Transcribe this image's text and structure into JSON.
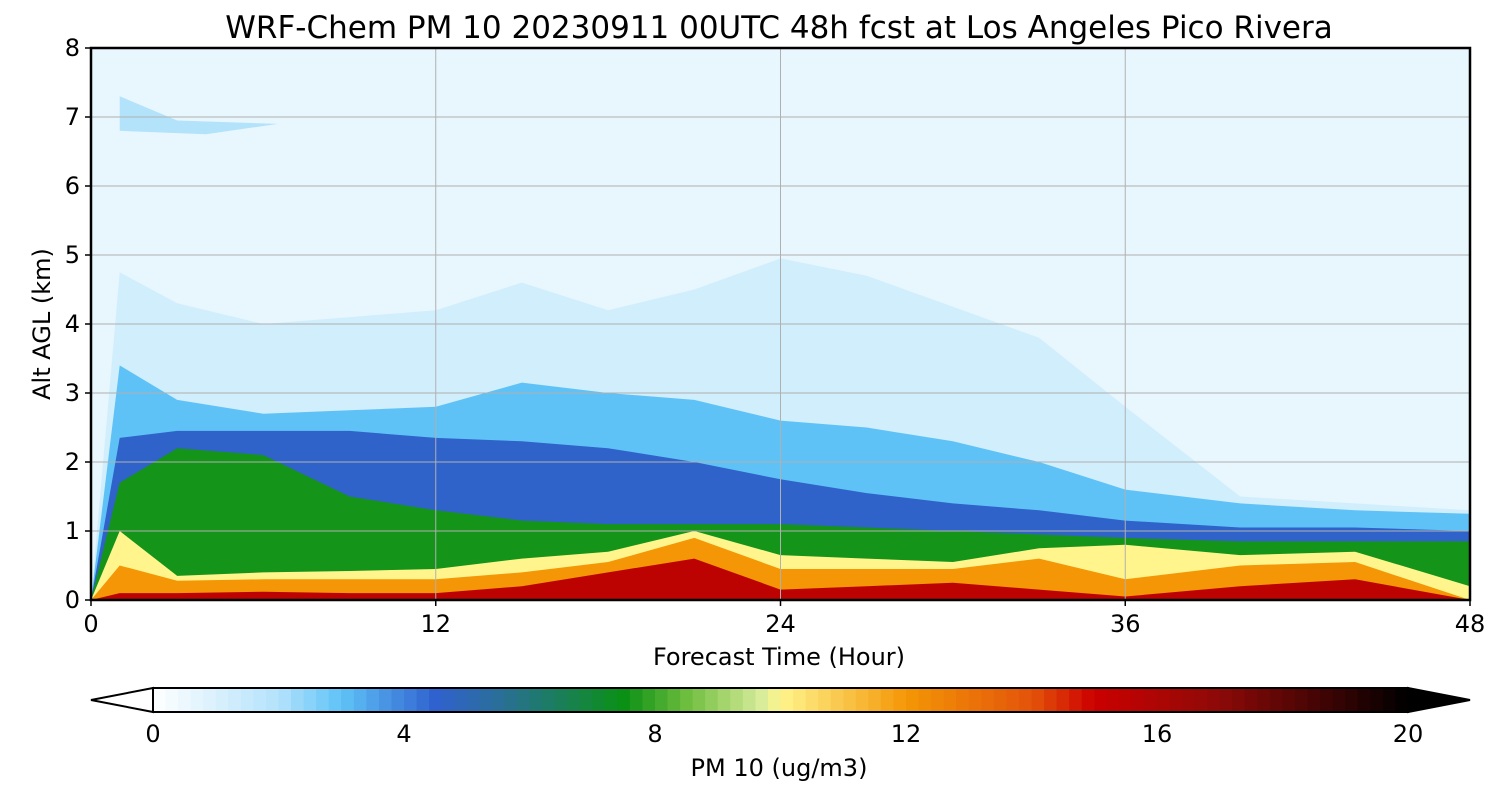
{
  "chart_data": {
    "type": "heatmap",
    "title": "WRF-Chem PM 10  20230911 00UTC 48h fcst at Los Angeles Pico Rivera",
    "xlabel": "Forecast Time (Hour)",
    "ylabel": "Alt AGL (km)",
    "xlim": [
      0,
      48
    ],
    "ylim": [
      0,
      8
    ],
    "x_ticks": [
      "0",
      "12",
      "24",
      "36",
      "48"
    ],
    "y_ticks": [
      "0",
      "1",
      "2",
      "3",
      "4",
      "5",
      "6",
      "7",
      "8"
    ],
    "grid": true,
    "colorbar": {
      "label": "PM 10  (ug/m3)",
      "range": [
        0,
        20
      ],
      "ticks": [
        "0",
        "4",
        "8",
        "12",
        "16",
        "20"
      ],
      "extend": "both",
      "stops": [
        {
          "value": 0,
          "color": "#ffffff"
        },
        {
          "value": 2,
          "color": "#b3e2fb"
        },
        {
          "value": 3,
          "color": "#5fc2f7"
        },
        {
          "value": 4.5,
          "color": "#3062cf"
        },
        {
          "value": 5.5,
          "color": "#2a6e9a"
        },
        {
          "value": 7.5,
          "color": "#0a9015"
        },
        {
          "value": 8.5,
          "color": "#6dbd3e"
        },
        {
          "value": 9.7,
          "color": "#d8ec9a"
        },
        {
          "value": 10,
          "color": "#fff58c"
        },
        {
          "value": 12,
          "color": "#f49606"
        },
        {
          "value": 14,
          "color": "#e3540a"
        },
        {
          "value": 15,
          "color": "#cc0000"
        },
        {
          "value": 17,
          "color": "#8c0a08"
        },
        {
          "value": 20,
          "color": "#000000"
        }
      ]
    },
    "layers": [
      {
        "name": "background",
        "values": [
          0.6,
          0.6
        ]
      },
      {
        "name": "top-core-2-4-5km",
        "values": [
          1.2,
          1.2
        ]
      },
      {
        "name": "upper-patches",
        "values": [
          2.0,
          2.0
        ]
      },
      {
        "name": "mid-level",
        "values": [
          3.0,
          3.0
        ]
      },
      {
        "name": "blue-core",
        "values": [
          4.6,
          4.6
        ]
      },
      {
        "name": "green-band",
        "values": [
          7.6,
          7.6
        ]
      },
      {
        "name": "yellow-band",
        "values": [
          10.0,
          10.0
        ]
      },
      {
        "name": "orange-band",
        "values": [
          12.0,
          12.0
        ]
      },
      {
        "name": "red-core",
        "values": [
          15.5,
          15.5
        ]
      }
    ],
    "contours": {
      "top_profile_km": {
        "x": [
          0,
          1,
          3,
          6,
          9,
          12,
          15,
          18,
          21,
          24,
          27,
          30,
          33,
          36,
          40,
          44,
          48
        ],
        "tall_plume_top": [
          0,
          4.75,
          4.3,
          4.0,
          4.1,
          4.2,
          4.6,
          4.2,
          4.5,
          4.95,
          4.7,
          4.25,
          3.8,
          2.8,
          1.5,
          1.4,
          1.3
        ],
        "mid_top": [
          0,
          3.4,
          2.9,
          2.7,
          2.75,
          2.8,
          3.15,
          3.0,
          2.9,
          2.6,
          2.5,
          2.3,
          2.0,
          1.6,
          1.4,
          1.3,
          1.25
        ],
        "blue_top": [
          0,
          2.35,
          2.45,
          2.45,
          2.45,
          2.35,
          2.3,
          2.2,
          2.0,
          1.75,
          1.55,
          1.4,
          1.3,
          1.15,
          1.05,
          1.05,
          1.0
        ],
        "green_top": [
          0,
          1.7,
          2.2,
          2.1,
          1.5,
          1.3,
          1.15,
          1.1,
          1.1,
          1.1,
          1.05,
          1.0,
          0.95,
          0.9,
          0.85,
          0.85,
          0.85
        ],
        "yellow_top": [
          0,
          1.0,
          0.35,
          0.4,
          0.42,
          0.45,
          0.6,
          0.7,
          1.0,
          0.65,
          0.6,
          0.55,
          0.75,
          0.8,
          0.65,
          0.7,
          0.2
        ],
        "orange_top": [
          0,
          0.5,
          0.28,
          0.3,
          0.3,
          0.3,
          0.4,
          0.55,
          0.9,
          0.45,
          0.45,
          0.45,
          0.6,
          0.3,
          0.5,
          0.55,
          0.0
        ],
        "red_top": [
          0,
          0.1,
          0.1,
          0.12,
          0.1,
          0.1,
          0.2,
          0.4,
          0.6,
          0.15,
          0.2,
          0.25,
          0.15,
          0.05,
          0.2,
          0.3,
          0.0
        ]
      }
    }
  }
}
